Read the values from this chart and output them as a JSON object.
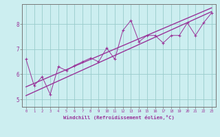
{
  "xlabel": "Windchill (Refroidissement éolien,°C)",
  "bg_color": "#cceef0",
  "line_color": "#993399",
  "grid_color": "#99cccc",
  "xlim": [
    -0.5,
    23.5
  ],
  "ylim": [
    4.7,
    8.8
  ],
  "xticks": [
    0,
    1,
    2,
    3,
    4,
    5,
    6,
    7,
    8,
    9,
    10,
    11,
    12,
    13,
    14,
    15,
    16,
    17,
    18,
    19,
    20,
    21,
    22,
    23
  ],
  "yticks": [
    5,
    6,
    7,
    8
  ],
  "data_x": [
    0,
    1,
    2,
    3,
    4,
    5,
    6,
    7,
    8,
    9,
    10,
    11,
    12,
    13,
    14,
    15,
    16,
    17,
    18,
    19,
    20,
    21,
    22,
    23
  ],
  "data_y": [
    6.6,
    5.55,
    5.9,
    5.2,
    6.3,
    6.15,
    6.35,
    6.5,
    6.65,
    6.5,
    7.05,
    6.6,
    7.75,
    8.15,
    7.3,
    7.55,
    7.55,
    7.25,
    7.55,
    7.55,
    8.05,
    7.55,
    8.05,
    8.45
  ],
  "reg_line1_x": [
    0,
    23
  ],
  "reg_line1_y": [
    5.15,
    8.5
  ],
  "reg_line2_x": [
    0,
    23
  ],
  "reg_line2_y": [
    5.5,
    8.65
  ]
}
